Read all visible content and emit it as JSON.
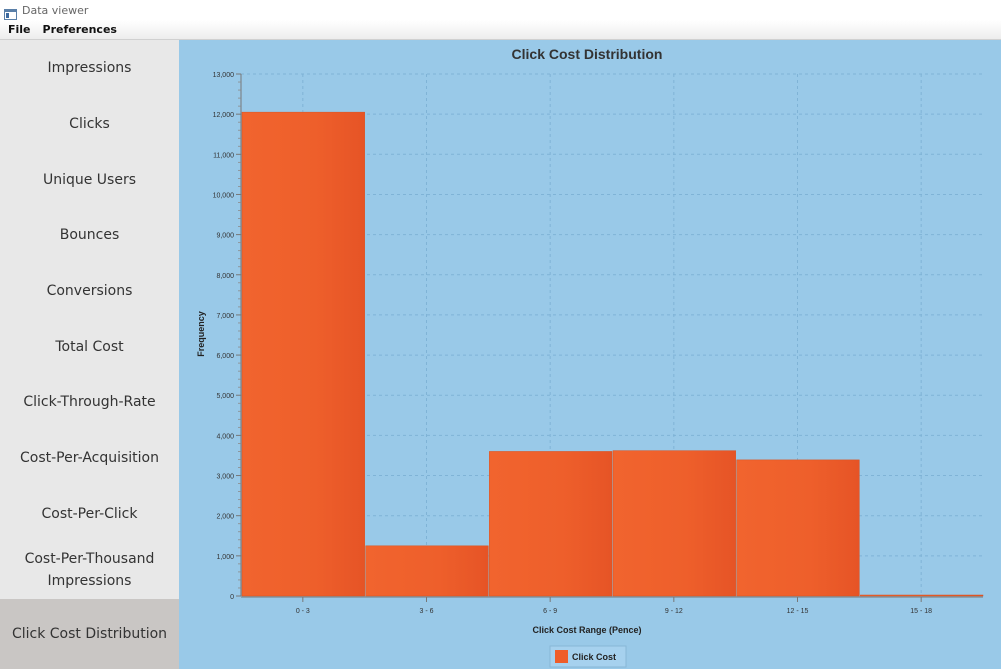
{
  "window": {
    "title": "Data viewer",
    "icon": "app-window-icon"
  },
  "menubar": {
    "items": [
      "File",
      "Preferences"
    ]
  },
  "sidebar": {
    "items": [
      {
        "label": "Impressions"
      },
      {
        "label": "Clicks"
      },
      {
        "label": "Unique Users"
      },
      {
        "label": "Bounces"
      },
      {
        "label": "Conversions"
      },
      {
        "label": "Total Cost"
      },
      {
        "label": "Click-Through-Rate"
      },
      {
        "label": "Cost-Per-Acquisition"
      },
      {
        "label": "Cost-Per-Click"
      },
      {
        "label": "Cost-Per-Thousand Impressions"
      },
      {
        "label": "Click Cost Distribution",
        "selected": true
      }
    ]
  },
  "colors": {
    "chart_background": "#99c9e8",
    "bar_fill": "#ef5d29",
    "sidebar_background": "#e8e8e8",
    "sidebar_selected": "#c9c6c4"
  },
  "chart_data": {
    "type": "bar",
    "title": "Click Cost Distribution",
    "xlabel": "Click Cost Range (Pence)",
    "ylabel": "Frequency",
    "categories": [
      "0 - 3",
      "3 - 6",
      "6 - 9",
      "9 - 12",
      "12 - 15",
      "15 - 18"
    ],
    "series": [
      {
        "name": "Click Cost",
        "values": [
          12050,
          1250,
          3600,
          3620,
          3390,
          0
        ]
      }
    ],
    "ylim": [
      0,
      13000
    ],
    "yticks": [
      "0",
      "1,000",
      "2,000",
      "3,000",
      "4,000",
      "5,000",
      "6,000",
      "7,000",
      "8,000",
      "9,000",
      "10,000",
      "11,000",
      "12,000",
      "13,000"
    ],
    "grid": true,
    "legend": "bottom-center"
  }
}
